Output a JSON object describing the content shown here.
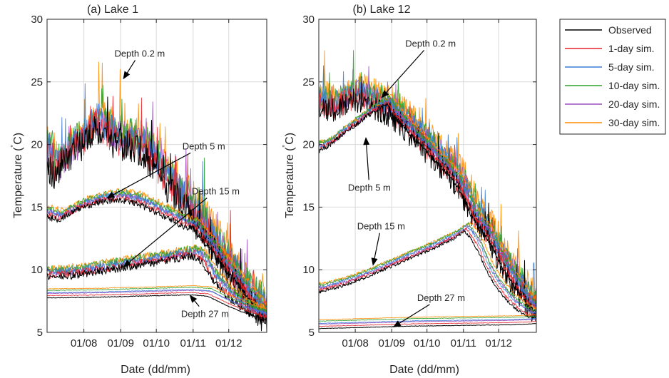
{
  "chart_data": [
    {
      "type": "line",
      "title": "(a) Lake 1",
      "xlabel": "Date (dd/mm)",
      "ylabel": "Temperature (",
      "ylabel_sup": "˚",
      "ylabel_unit": "C)",
      "xlim": [
        0,
        185
      ],
      "ylim": [
        5,
        30
      ],
      "yticks": [
        5,
        10,
        15,
        20,
        25,
        30
      ],
      "xticks": [
        {
          "label": "01/08",
          "day": 31
        },
        {
          "label": "01/09",
          "day": 62
        },
        {
          "label": "01/10",
          "day": 92
        },
        {
          "label": "01/11",
          "day": 123
        },
        {
          "label": "01/12",
          "day": 153
        }
      ],
      "grid": true,
      "annotations": [
        {
          "text": "Depth 0.2 m",
          "tx": 78,
          "ty": 27.3,
          "ax": 64,
          "ay": 25.2
        },
        {
          "text": "Depth 5 m",
          "tx": 132,
          "ty": 19.9,
          "ax": 50,
          "ay": 15.7
        },
        {
          "text": "Depth 15 m",
          "tx": 142,
          "ty": 16.3,
          "ax": 64,
          "ay": 10.2
        },
        {
          "text": "Depth 27 m",
          "tx": 133,
          "ty": 6.5,
          "ax": 120,
          "ay": 8.0
        }
      ],
      "depths": [
        {
          "name": "Depth 0.2 m",
          "noise": 1.3,
          "spikes": true,
          "x": [
            0,
            4,
            8,
            15,
            22,
            30,
            40,
            50,
            60,
            70,
            80,
            90,
            100,
            108,
            115,
            120,
            125,
            132,
            140,
            150,
            160,
            170,
            178,
            185
          ],
          "y": [
            19,
            17.5,
            18,
            18.8,
            19.5,
            20,
            21.5,
            20.5,
            20,
            19.8,
            19.3,
            18.2,
            16.8,
            15.8,
            15,
            14.5,
            13.8,
            12.8,
            11.6,
            10.2,
            8.7,
            7.5,
            6.6,
            6.0
          ]
        },
        {
          "name": "Depth 5 m",
          "noise": 0.25,
          "spikes": false,
          "x": [
            0,
            10,
            20,
            30,
            45,
            60,
            75,
            85,
            95,
            105,
            112,
            118,
            122,
            126,
            130,
            140,
            150,
            160,
            170,
            185
          ],
          "y": [
            14.2,
            14.0,
            14.5,
            15.0,
            15.4,
            15.6,
            15.3,
            14.9,
            14.4,
            14.0,
            13.6,
            13.3,
            13.4,
            13.0,
            12.4,
            11.3,
            10.0,
            8.9,
            7.7,
            6.0
          ]
        },
        {
          "name": "Depth 15 m",
          "noise": 0.3,
          "spikes": false,
          "x": [
            0,
            20,
            40,
            60,
            80,
            100,
            115,
            122,
            128,
            133,
            140,
            150,
            160,
            170,
            185
          ],
          "y": [
            9.4,
            9.5,
            9.8,
            10.1,
            10.4,
            10.7,
            11.0,
            11.1,
            10.9,
            10.2,
            9.1,
            8.0,
            7.2,
            6.5,
            5.9
          ]
        },
        {
          "name": "Depth 27 m",
          "noise": 0.03,
          "spikes": false,
          "x": [
            0,
            40,
            80,
            120,
            135,
            150,
            165,
            185
          ],
          "y": [
            7.75,
            7.8,
            7.9,
            8.0,
            7.9,
            7.2,
            6.6,
            6.0
          ]
        }
      ]
    },
    {
      "type": "line",
      "title": "(b) Lake 12",
      "xlabel": "Date (dd/mm)",
      "ylabel": "Temperature (",
      "ylabel_sup": "˚",
      "ylabel_unit": "C)",
      "xlim": [
        0,
        185
      ],
      "ylim": [
        5,
        30
      ],
      "yticks": [
        5,
        10,
        15,
        20,
        25,
        30
      ],
      "xticks": [
        {
          "label": "01/08",
          "day": 31
        },
        {
          "label": "01/09",
          "day": 62
        },
        {
          "label": "01/10",
          "day": 92
        },
        {
          "label": "01/11",
          "day": 123
        },
        {
          "label": "01/12",
          "day": 153
        }
      ],
      "grid": true,
      "annotations": [
        {
          "text": "Depth 0.2 m",
          "tx": 95,
          "ty": 28.1,
          "ax": 53,
          "ay": 23.7
        },
        {
          "text": "Depth 5 m",
          "tx": 43,
          "ty": 16.6,
          "ax": 40,
          "ay": 20.6
        },
        {
          "text": "Depth 15 m",
          "tx": 53,
          "ty": 13.5,
          "ax": 46,
          "ay": 10.3
        },
        {
          "text": "Depth 27 m",
          "tx": 104,
          "ty": 7.8,
          "ax": 63,
          "ay": 5.4
        }
      ],
      "depths": [
        {
          "name": "Depth 0.2 m",
          "noise": 1.0,
          "spikes": true,
          "x": [
            0,
            10,
            20,
            30,
            40,
            50,
            60,
            70,
            80,
            90,
            100,
            110,
            118,
            125,
            130,
            140,
            150,
            160,
            170,
            178,
            185
          ],
          "y": [
            23.0,
            22.6,
            23.0,
            23.6,
            23.2,
            22.8,
            22.3,
            21.5,
            20.6,
            19.6,
            18.6,
            17.6,
            16.7,
            15.4,
            14.2,
            13.0,
            11.3,
            9.6,
            8.1,
            7.1,
            6.6
          ]
        },
        {
          "name": "Depth 5 m",
          "noise": 0.2,
          "spikes": false,
          "x": [
            0,
            10,
            20,
            30,
            40,
            50,
            58,
            62,
            70,
            80,
            90,
            100,
            110,
            118,
            125,
            130,
            140,
            150,
            160,
            170,
            178,
            185
          ],
          "y": [
            19.5,
            20.0,
            20.8,
            21.5,
            22.2,
            22.8,
            23.2,
            22.4,
            21.6,
            20.6,
            19.6,
            18.6,
            17.6,
            16.7,
            15.4,
            14.2,
            13.0,
            11.3,
            9.6,
            8.1,
            7.1,
            6.6
          ]
        },
        {
          "name": "Depth 15 m",
          "noise": 0.12,
          "spikes": false,
          "x": [
            0,
            20,
            40,
            60,
            80,
            100,
            115,
            124,
            130,
            136,
            142,
            150,
            160,
            170,
            178,
            185
          ],
          "y": [
            8.2,
            8.7,
            9.4,
            10.2,
            11.0,
            11.8,
            12.5,
            13.1,
            12.4,
            11.4,
            10.0,
            8.7,
            7.5,
            6.7,
            6.2,
            6.2
          ]
        },
        {
          "name": "Depth 27 m",
          "noise": 0.02,
          "spikes": false,
          "x": [
            0,
            40,
            80,
            120,
            160,
            175,
            185
          ],
          "y": [
            5.3,
            5.4,
            5.5,
            5.55,
            5.6,
            5.65,
            5.7
          ]
        }
      ]
    }
  ],
  "legend": {
    "placement": "right",
    "entries": [
      {
        "name": "Observed",
        "color": "#000000",
        "temp_offset": 0.0,
        "lag_days": 0
      },
      {
        "name": "1-day sim.",
        "color": "#e8202a",
        "temp_offset": 0.3,
        "lag_days": 1
      },
      {
        "name": "5-day sim.",
        "color": "#3b7dd8",
        "temp_offset": 0.7,
        "lag_days": 2
      },
      {
        "name": "10-day sim.",
        "color": "#2ca02c",
        "temp_offset": 1.0,
        "lag_days": 3
      },
      {
        "name": "20-day sim.",
        "color": "#9b4fc2",
        "temp_offset": 0.6,
        "lag_days": 4
      },
      {
        "name": "30-day sim.",
        "color": "#ff8c00",
        "temp_offset": 1.2,
        "lag_days": 5
      }
    ]
  }
}
